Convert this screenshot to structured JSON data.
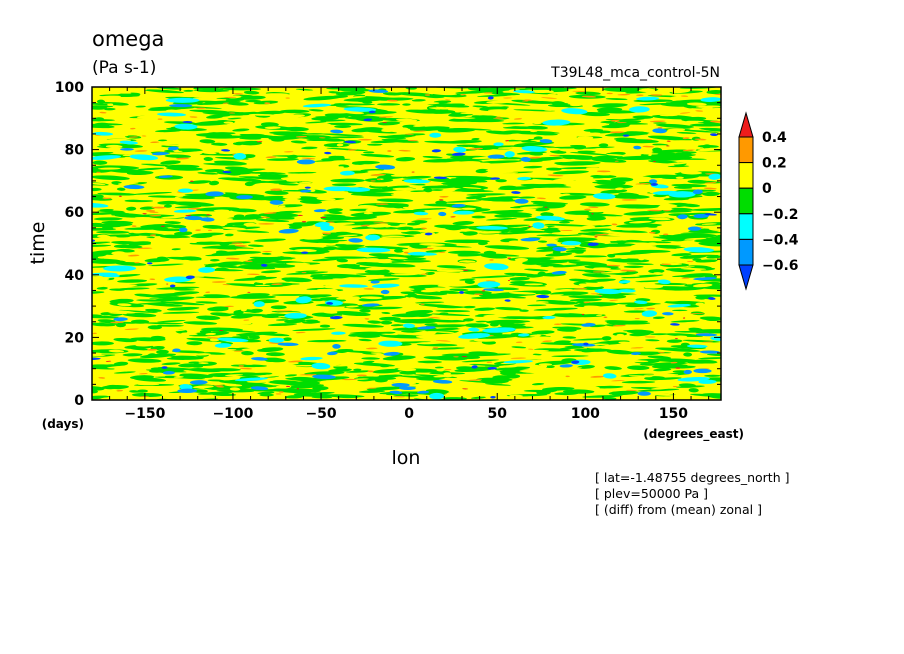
{
  "chart_data": {
    "type": "heatmap",
    "title": "omega",
    "subtitle": "(Pa s-1)",
    "run_label": "T39L48_mca_control-5N",
    "xlabel": "lon",
    "xunit": "(degrees_east)",
    "ylabel": "time",
    "yunit": "(days)",
    "xlim": [
      -180,
      177
    ],
    "ylim": [
      0,
      100
    ],
    "xticks": [
      -150,
      -100,
      -50,
      0,
      50,
      100,
      150
    ],
    "yticks": [
      0,
      20,
      40,
      60,
      80,
      100
    ],
    "colorbar": {
      "levels": [
        "0.4",
        "0.2",
        "0",
        "-0.2",
        "-0.4",
        "-0.6"
      ],
      "bands": [
        {
          "range": "> 0.4",
          "color": "#ee1c1c"
        },
        {
          "range": "0.2 to 0.4",
          "color": "#ff9900"
        },
        {
          "range": "0 to 0.2",
          "color": "#ffff00"
        },
        {
          "range": "-0.2 to 0",
          "color": "#00dd00"
        },
        {
          "range": "-0.4 to -0.2",
          "color": "#00ffff"
        },
        {
          "range": "-0.6 to -0.4",
          "color": "#0099ff"
        },
        {
          "range": "< -0.6",
          "color": "#0040ff"
        }
      ]
    },
    "annotations": [
      "[ lat=-1.48755 degrees_north ]",
      "[ plev=50000 Pa ]",
      "[ (diff) from (mean) zonal ]"
    ],
    "grid": false
  }
}
